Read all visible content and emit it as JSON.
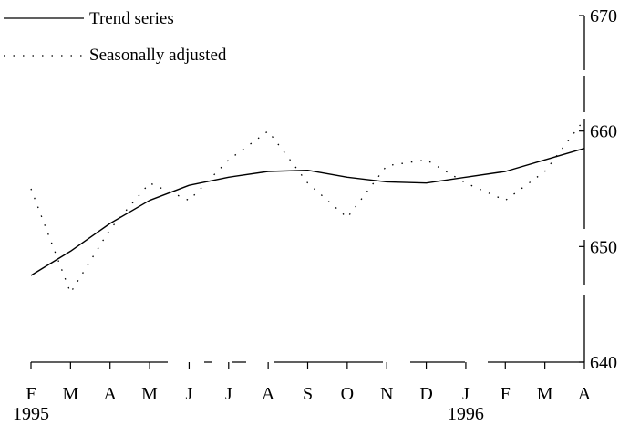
{
  "chart_data": {
    "type": "line",
    "title": "",
    "xlabel": "",
    "ylabel": "",
    "x": [
      "Feb 1995",
      "Mar 1995",
      "Apr 1995",
      "May 1995",
      "Jun 1995",
      "Jul 1995",
      "Aug 1995",
      "Sep 1995",
      "Oct 1995",
      "Nov 1995",
      "Dec 1995",
      "Jan 1996",
      "Feb 1996",
      "Mar 1996",
      "Apr 1996"
    ],
    "x_tick_labels": [
      "F",
      "M",
      "A",
      "M",
      "J",
      "J",
      "A",
      "S",
      "O",
      "N",
      "D",
      "J",
      "F",
      "M",
      "A"
    ],
    "year_labels": [
      {
        "text": "1995",
        "index": 0
      },
      {
        "text": "1996",
        "index": 11
      }
    ],
    "ylim": [
      640,
      670
    ],
    "y_ticks": [
      640,
      650,
      660,
      670
    ],
    "y_axis_side": "right",
    "grid": false,
    "legend_position": "top-left",
    "series": [
      {
        "name": "Trend series",
        "style": "solid",
        "color": "#000000",
        "values": [
          647.5,
          649.6,
          652.0,
          654.0,
          655.3,
          656.0,
          656.5,
          656.6,
          656.0,
          655.6,
          655.5,
          656.0,
          656.5,
          657.5,
          658.5
        ]
      },
      {
        "name": "Seasonally adjusted",
        "style": "dotted",
        "color": "#000000",
        "values": [
          655.0,
          646.0,
          651.5,
          655.5,
          654.0,
          657.5,
          660.0,
          655.5,
          652.5,
          657.0,
          657.5,
          655.5,
          654.0,
          656.5,
          661.0
        ]
      }
    ]
  }
}
